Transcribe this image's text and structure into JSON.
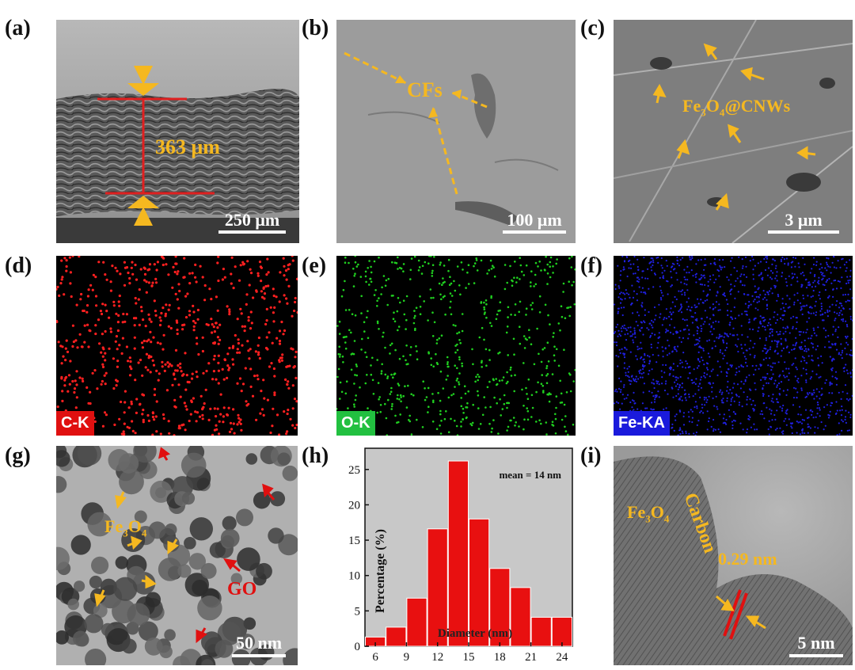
{
  "panels": {
    "a": {
      "label": "(a)",
      "thickness": "363 μm",
      "scale": "250 μm"
    },
    "b": {
      "label": "(b)",
      "annotation": "CFs",
      "scale": "100 μm"
    },
    "c": {
      "label": "(c)",
      "annotation_main": "Fe",
      "annotation_sub1": "3",
      "annotation_mid": "O",
      "annotation_sub2": "4",
      "annotation_end": "@CNWs",
      "scale": "3 μm"
    },
    "d": {
      "label": "(d)",
      "element": "C-K",
      "color": "#ff2020"
    },
    "e": {
      "label": "(e)",
      "element": "O-K",
      "color": "#20d020"
    },
    "f": {
      "label": "(f)",
      "element": "Fe-KA",
      "color": "#2020e0"
    },
    "g": {
      "label": "(g)",
      "fe_main": "Fe",
      "fe_sub1": "3",
      "fe_mid": "O",
      "fe_sub2": "4",
      "go": "GO",
      "scale": "50 nm"
    },
    "h": {
      "label": "(h)"
    },
    "i": {
      "label": "(i)",
      "fe_main": "Fe",
      "fe_sub1": "3",
      "fe_mid": "O",
      "fe_sub2": "4",
      "carbon": "Carbon",
      "spacing": "0.29 nm",
      "scale": "5 nm"
    }
  },
  "chart_data": {
    "type": "bar",
    "xlabel": "Diameter (nm)",
    "ylabel": "Percentage (%)",
    "annotation": "mean = 14 nm",
    "x_ticks": [
      6,
      9,
      12,
      15,
      18,
      21,
      24
    ],
    "y_ticks": [
      0,
      5,
      10,
      15,
      20,
      25
    ],
    "xlim": [
      5,
      25
    ],
    "ylim": [
      0,
      28
    ],
    "bin_centers": [
      6,
      8,
      10,
      12,
      14,
      16,
      18,
      20,
      22,
      24
    ],
    "values": [
      1.3,
      2.7,
      6.8,
      16.6,
      26.2,
      18.0,
      11.0,
      8.3,
      4.1,
      4.1
    ],
    "colors": {
      "bar": "#e81010",
      "background": "#c8c8c8"
    }
  }
}
